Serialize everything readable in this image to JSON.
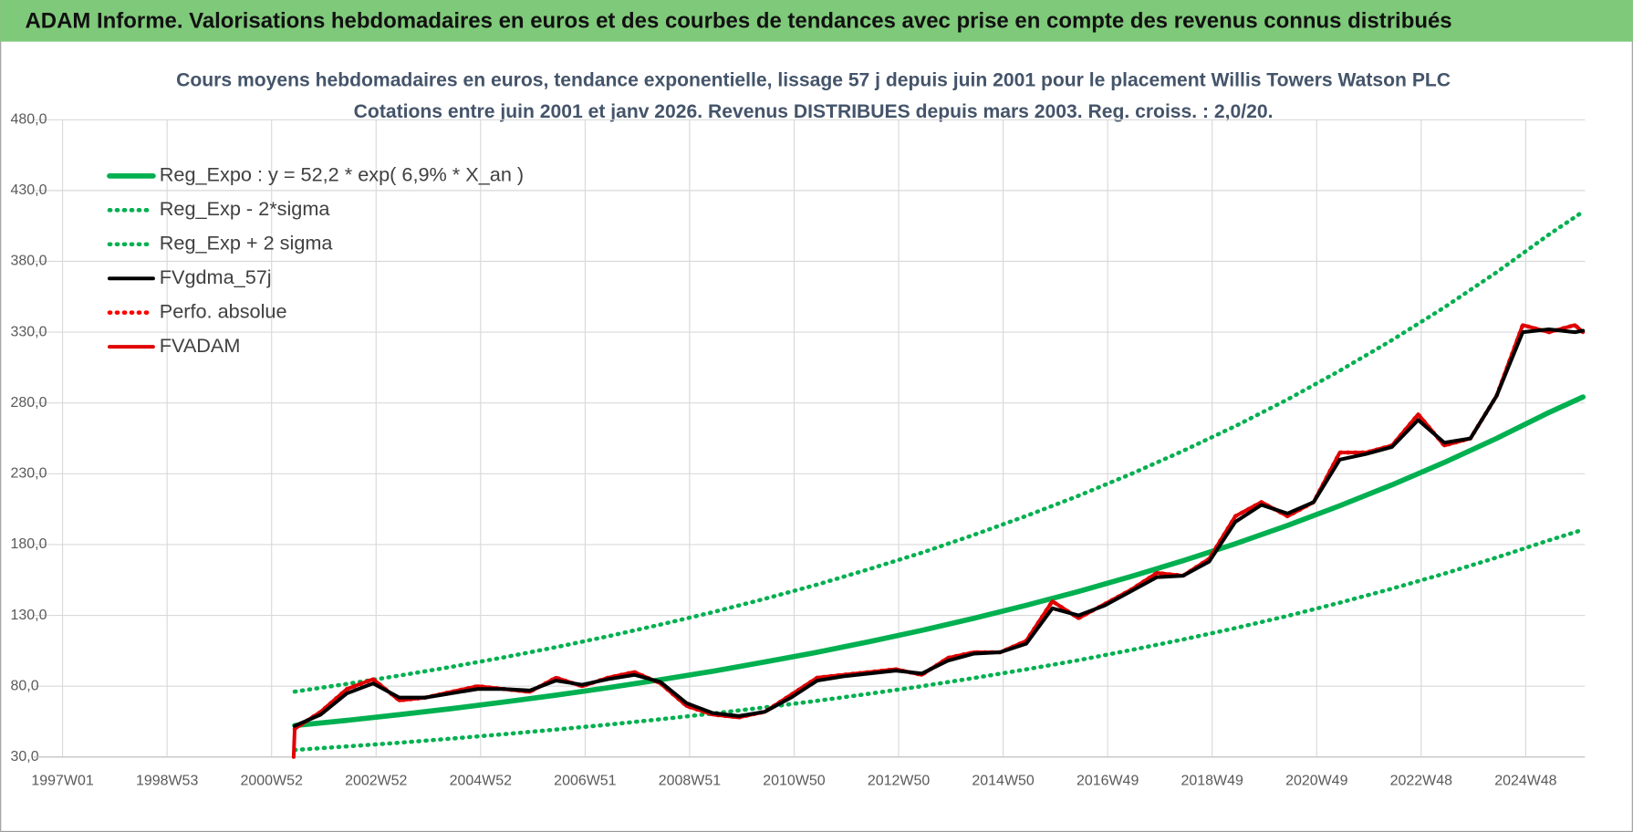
{
  "header": {
    "title": "ADAM Informe. Valorisations hebdomadaires en euros et des courbes de tendances avec prise en compte des revenus connus distribués"
  },
  "chart_data": {
    "type": "line",
    "title": "Cours moyens hebdomadaires en euros, tendance exponentielle, lissage 57 j depuis juin 2001 pour le placement Willis Towers Watson PLC",
    "subtitle": "Cotations entre juin 2001 et janv 2026.  Revenus DISTRIBUES depuis mars 2003. Reg. croiss. : 2,0/20.",
    "legend": "upper left",
    "grid": true,
    "xlim": [
      -29,
      1515
    ],
    "xticks": [
      {
        "value": 0,
        "label": "1997W01"
      },
      {
        "value": 104,
        "label": "1998W53"
      },
      {
        "value": 208,
        "label": "2000W52"
      },
      {
        "value": 312,
        "label": "2002W52"
      },
      {
        "value": 416,
        "label": "2004W52"
      },
      {
        "value": 520,
        "label": "2006W51"
      },
      {
        "value": 624,
        "label": "2008W51"
      },
      {
        "value": 728,
        "label": "2010W50"
      },
      {
        "value": 832,
        "label": "2012W50"
      },
      {
        "value": 936,
        "label": "2014W50"
      },
      {
        "value": 1040,
        "label": "2016W49"
      },
      {
        "value": 1144,
        "label": "2018W49"
      },
      {
        "value": 1248,
        "label": "2020W49"
      },
      {
        "value": 1352,
        "label": "2022W48"
      },
      {
        "value": 1456,
        "label": "2024W48"
      }
    ],
    "ylim": [
      30,
      480
    ],
    "yticks": [
      {
        "value": 30,
        "label": "30,0"
      },
      {
        "value": 80,
        "label": "80,0"
      },
      {
        "value": 130,
        "label": "130,0"
      },
      {
        "value": 180,
        "label": "180,0"
      },
      {
        "value": 230,
        "label": "230,0"
      },
      {
        "value": 280,
        "label": "280,0"
      },
      {
        "value": 330,
        "label": "330,0"
      },
      {
        "value": 380,
        "label": "380,0"
      },
      {
        "value": 430,
        "label": "430,0"
      },
      {
        "value": 480,
        "label": "480,0"
      }
    ],
    "series": [
      {
        "name": "Reg_Expo : y = 52,2 * exp( 6,9% *  X_an )",
        "color": "#00b050",
        "style": "solid",
        "x": [
          231,
          283,
          335,
          387,
          439,
          491,
          543,
          595,
          647,
          699,
          751,
          803,
          855,
          907,
          959,
          1011,
          1063,
          1115,
          1167,
          1219,
          1271,
          1323,
          1375,
          1427,
          1479,
          1513
        ],
        "values": [
          52.2,
          55.9,
          59.9,
          64.2,
          68.8,
          73.7,
          79.0,
          84.6,
          90.6,
          97.1,
          104.0,
          111.5,
          119.4,
          128.0,
          137.1,
          146.9,
          157.4,
          168.6,
          180.6,
          193.5,
          207.4,
          222.2,
          238.0,
          255.0,
          273.2,
          284.3
        ]
      },
      {
        "name": "Reg_Exp - 2*sigma",
        "color": "#00b050",
        "style": "dotted",
        "x": [
          231,
          283,
          335,
          387,
          439,
          491,
          543,
          595,
          647,
          699,
          751,
          803,
          855,
          907,
          959,
          1011,
          1063,
          1115,
          1167,
          1219,
          1271,
          1323,
          1375,
          1427,
          1479,
          1513
        ],
        "values": [
          35.0,
          37.5,
          40.1,
          43.0,
          46.1,
          49.4,
          52.9,
          56.7,
          60.7,
          65.1,
          69.7,
          74.7,
          80.0,
          85.8,
          91.9,
          98.4,
          105.5,
          113.0,
          121.0,
          129.6,
          139.0,
          148.9,
          159.5,
          170.9,
          183.0,
          190.5
        ]
      },
      {
        "name": "Reg_Exp + 2 sigma",
        "color": "#00b050",
        "style": "dotted",
        "x": [
          231,
          283,
          335,
          387,
          439,
          491,
          543,
          595,
          647,
          699,
          751,
          803,
          855,
          907,
          959,
          1011,
          1063,
          1115,
          1167,
          1219,
          1271,
          1323,
          1375,
          1427,
          1479,
          1513
        ],
        "values": [
          76.2,
          81.6,
          87.5,
          93.7,
          100.4,
          107.6,
          115.3,
          123.5,
          132.3,
          141.8,
          151.8,
          162.8,
          174.3,
          186.9,
          200.2,
          214.5,
          229.8,
          246.2,
          263.7,
          282.5,
          302.8,
          324.4,
          347.5,
          372.3,
          398.9,
          415.1
        ]
      },
      {
        "name": "FVgdma_57j",
        "color": "#000000",
        "style": "solid",
        "x": [
          231,
          257,
          283,
          309,
          335,
          361,
          387,
          413,
          439,
          465,
          491,
          517,
          543,
          569,
          595,
          621,
          647,
          673,
          699,
          725,
          751,
          777,
          803,
          829,
          855,
          881,
          907,
          933,
          959,
          985,
          1011,
          1037,
          1063,
          1089,
          1115,
          1141,
          1167,
          1193,
          1219,
          1245,
          1271,
          1297,
          1323,
          1349,
          1375,
          1401,
          1427,
          1453,
          1479,
          1505,
          1513
        ],
        "values": [
          52,
          60,
          75,
          82,
          72,
          72,
          75,
          78,
          78,
          77,
          84,
          81,
          85,
          88,
          83,
          68,
          61,
          59,
          62,
          72,
          84,
          87,
          89,
          91,
          89,
          98,
          103,
          104,
          110,
          135,
          130,
          137,
          147,
          157,
          158,
          168,
          196,
          208,
          202,
          210,
          240,
          244,
          249,
          268,
          252,
          255,
          285,
          330,
          332,
          330,
          331
        ]
      },
      {
        "name": "Perfo. absolue",
        "color": "#ff0000",
        "style": "dotted",
        "x": [
          231,
          257,
          283,
          309,
          335,
          361,
          387,
          413,
          439,
          465,
          491,
          517,
          543,
          569,
          595,
          621,
          647,
          673,
          699,
          725,
          751,
          777,
          803,
          829,
          855,
          881,
          907,
          933,
          959,
          985,
          1011,
          1037,
          1063,
          1089,
          1115,
          1141,
          1167,
          1193,
          1219,
          1245,
          1271,
          1297,
          1323,
          1349,
          1375,
          1401,
          1427,
          1453,
          1479,
          1505,
          1513
        ],
        "values": [
          50,
          62,
          78,
          85,
          70,
          72,
          76,
          80,
          78,
          76,
          86,
          80,
          86,
          90,
          82,
          66,
          60,
          58,
          62,
          74,
          86,
          88,
          90,
          92,
          88,
          100,
          104,
          104,
          112,
          140,
          128,
          138,
          148,
          160,
          158,
          170,
          200,
          210,
          200,
          210,
          245,
          245,
          250,
          272,
          250,
          255,
          285,
          335,
          330,
          335,
          330
        ]
      },
      {
        "name": "FVADAM",
        "color": "#e00000",
        "style": "solid",
        "x": [
          230,
          231,
          257,
          283,
          309,
          335,
          361,
          387,
          413,
          439,
          465,
          491,
          517,
          543,
          569,
          595,
          621,
          647,
          673,
          699,
          725,
          751,
          777,
          803,
          829,
          855,
          881,
          907,
          933,
          959,
          985,
          1011,
          1037,
          1063,
          1089,
          1115,
          1141,
          1167,
          1193,
          1219,
          1245,
          1271,
          1297,
          1323,
          1349,
          1375,
          1401,
          1427,
          1453,
          1479,
          1505,
          1513
        ],
        "values": [
          30,
          50,
          62,
          78,
          85,
          70,
          72,
          76,
          80,
          78,
          76,
          86,
          80,
          86,
          90,
          82,
          66,
          60,
          58,
          62,
          74,
          86,
          88,
          90,
          92,
          88,
          100,
          104,
          104,
          112,
          140,
          128,
          138,
          148,
          160,
          158,
          170,
          200,
          210,
          200,
          210,
          245,
          245,
          250,
          272,
          250,
          255,
          285,
          335,
          330,
          335,
          330
        ]
      }
    ]
  }
}
